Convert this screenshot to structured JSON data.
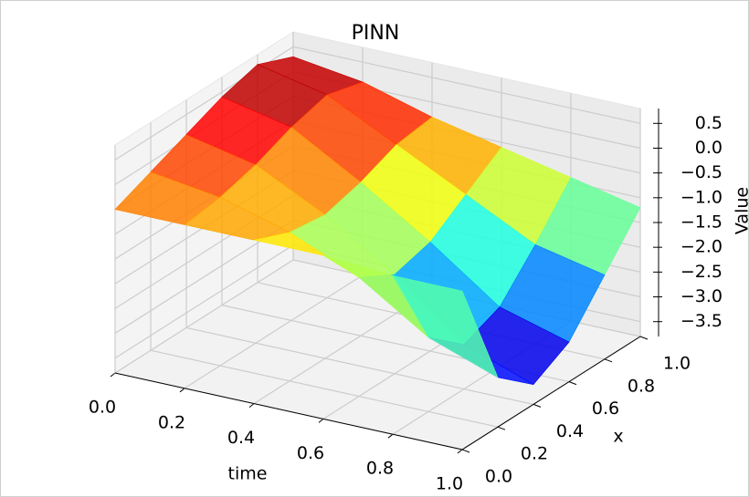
{
  "chart_data": {
    "type": "surface",
    "title": "PINN",
    "xlabel": "time",
    "ylabel": "x",
    "zlabel": "Value",
    "colormap": "jet",
    "x": [
      0,
      0.2,
      0.4,
      0.6,
      0.8,
      1.0
    ],
    "y": [
      0,
      0.2,
      0.4,
      0.6,
      0.8,
      1.0
    ],
    "z": [
      [
        -0.5,
        -0.2,
        0.1,
        0.4,
        0.6,
        0.3
      ],
      [
        -0.5,
        -0.4,
        -0.2,
        0.1,
        0.3,
        0.1
      ],
      [
        -0.5,
        -0.8,
        -0.9,
        -0.7,
        -0.4,
        -0.3
      ],
      [
        -0.5,
        -1.4,
        -1.8,
        -1.6,
        -1.1,
        -0.6
      ],
      [
        -0.6,
        -2.3,
        -2.9,
        -2.6,
        -1.8,
        -0.9
      ],
      [
        -0.6,
        -2.8,
        -3.4,
        -3.0,
        -2.1,
        -1.2
      ]
    ],
    "xlim": [
      0,
      1
    ],
    "ylim": [
      0,
      1
    ],
    "zlim": [
      -3.8,
      0.8
    ],
    "xticks": [
      {
        "value": 0,
        "label": "0.0"
      },
      {
        "value": 0.2,
        "label": "0.2"
      },
      {
        "value": 0.4,
        "label": "0.4"
      },
      {
        "value": 0.6,
        "label": "0.6"
      },
      {
        "value": 0.8,
        "label": "0.8"
      },
      {
        "value": 1,
        "label": "1.0"
      }
    ],
    "yticks": [
      {
        "value": 0,
        "label": "0.0"
      },
      {
        "value": 0.2,
        "label": "0.2"
      },
      {
        "value": 0.4,
        "label": "0.4"
      },
      {
        "value": 0.6,
        "label": "0.6"
      },
      {
        "value": 0.8,
        "label": "0.8"
      },
      {
        "value": 1,
        "label": "1.0"
      }
    ],
    "zticks": [
      {
        "value": 0.5,
        "label": "0.5"
      },
      {
        "value": 0,
        "label": "0.0"
      },
      {
        "value": -0.5,
        "label": "−0.5"
      },
      {
        "value": -1,
        "label": "−1.0"
      },
      {
        "value": -1.5,
        "label": "−1.5"
      },
      {
        "value": -2,
        "label": "−2.0"
      },
      {
        "value": -2.5,
        "label": "−2.5"
      },
      {
        "value": -3,
        "label": "−3.0"
      },
      {
        "value": -3.5,
        "label": "−3.5"
      }
    ],
    "grid": true
  }
}
